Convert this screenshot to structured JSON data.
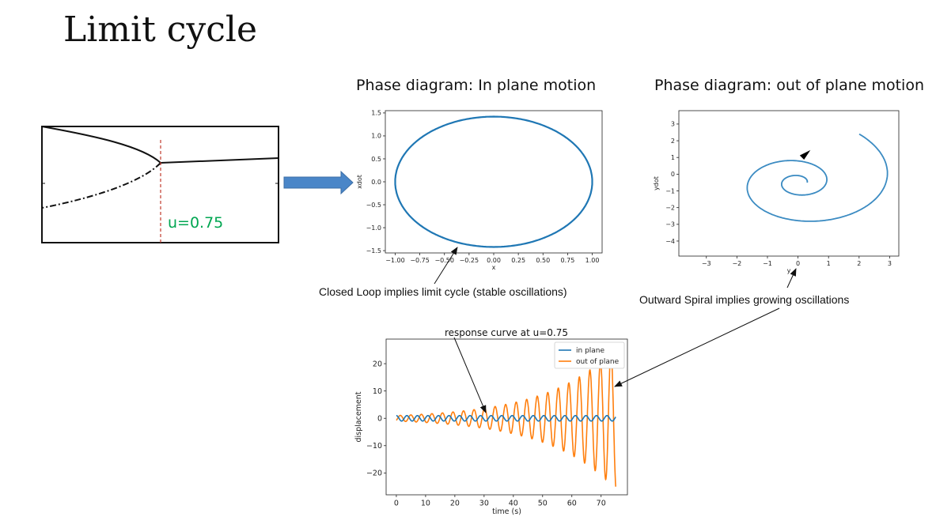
{
  "slide": {
    "title": "Limit cycle",
    "bifurcation": {
      "label": "u=0.75",
      "label_color": "#00a651",
      "marker_color": "#c0392b"
    },
    "arrow_color": "#4a86c8",
    "notes": {
      "in_plane": "Closed Loop implies limit cycle (stable oscillations)",
      "out_of_plane": "Outward Spiral implies growing oscillations"
    }
  },
  "chart_data": [
    {
      "type": "line",
      "title": "Phase diagram: In plane motion",
      "xlabel": "x",
      "ylabel": "xdot",
      "xlim": [
        -1.1,
        1.1
      ],
      "ylim": [
        -1.55,
        1.55
      ],
      "xticks": [
        "−1.00",
        "−0.75",
        "−0.50",
        "−0.25",
        "0.00",
        "0.25",
        "0.50",
        "0.75",
        "1.00"
      ],
      "yticks": [
        "−1.5",
        "−1.0",
        "−0.5",
        "0.0",
        "0.5",
        "1.0",
        "1.5"
      ],
      "series": [
        {
          "description": "closed loop",
          "x_amplitude": 1.0,
          "y_amplitude": 1.42,
          "color": "#1f77b4"
        }
      ]
    },
    {
      "type": "line",
      "title": "Phase diagram: out of plane motion",
      "xlabel": "y",
      "ylabel": "ydot",
      "xlim": [
        -3.9,
        3.3
      ],
      "ylim": [
        -4.9,
        3.8
      ],
      "xticks": [
        "−3",
        "−2",
        "−1",
        "0",
        "1",
        "2",
        "3"
      ],
      "yticks": [
        "−4",
        "−3",
        "−2",
        "−1",
        "0",
        "1",
        "2",
        "3"
      ],
      "series": [
        {
          "description": "outward spiral",
          "center": [
            0,
            -0.5
          ],
          "color": "#3b8bc2"
        }
      ]
    },
    {
      "type": "line",
      "title": "response curve at u=0.75",
      "xlabel": "time (s)",
      "ylabel": "displacement",
      "xlim": [
        -3.5,
        79
      ],
      "ylim": [
        -28,
        29
      ],
      "xticks": [
        "0",
        "10",
        "20",
        "30",
        "40",
        "50",
        "60",
        "70"
      ],
      "yticks": [
        "−20",
        "−10",
        "0",
        "10",
        "20"
      ],
      "legend": "top-right",
      "series": [
        {
          "name": "in plane",
          "color": "#1f77b4",
          "amplitude": 1.0,
          "period": 3.6
        },
        {
          "name": "out of plane",
          "color": "#ff7f0e",
          "amplitude_start": 1.0,
          "amplitude_end": 26,
          "period": 3.6
        }
      ]
    }
  ]
}
